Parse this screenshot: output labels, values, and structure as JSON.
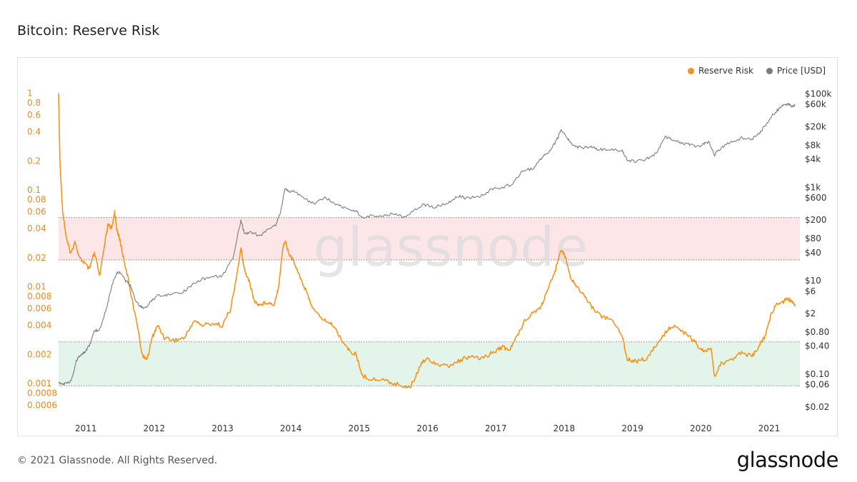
{
  "title": "Bitcoin: Reserve Risk",
  "footer": "© 2021 Glassnode. All Rights Reserved.",
  "brand": "glassnode",
  "watermark": "glassnode",
  "chart_data": {
    "type": "line",
    "title": "Bitcoin: Reserve Risk",
    "legend_position": "top-right",
    "grid": false,
    "x_ticks": [
      "2011",
      "2012",
      "2013",
      "2014",
      "2015",
      "2016",
      "2017",
      "2018",
      "2019",
      "2020",
      "2021"
    ],
    "x_range": [
      2010.6,
      2021.45
    ],
    "left_axis": {
      "scale": "log",
      "range": [
        0.0005,
        1.2
      ],
      "ticks": [
        1,
        0.8,
        0.6,
        0.4,
        0.2,
        0.1,
        0.08,
        0.06,
        0.04,
        0.02,
        0.01,
        0.008,
        0.006,
        0.004,
        0.002,
        0.001,
        0.0008,
        0.0006
      ],
      "tick_labels": [
        "1",
        "0.8",
        "0.6",
        "0.4",
        "0.2",
        "0.1",
        "0.08",
        "0.06",
        "0.04",
        "0.02",
        "0.01",
        "0.008",
        "0.006",
        "0.004",
        "0.002",
        "0.001",
        "0.0008",
        "0.0006"
      ]
    },
    "right_axis": {
      "scale": "log",
      "range": [
        0.015,
        150000
      ],
      "ticks": [
        100000,
        60000,
        20000,
        8000,
        4000,
        1000,
        600,
        200,
        80,
        40,
        10,
        6,
        2,
        0.8,
        0.4,
        0.1,
        0.06,
        0.02
      ],
      "tick_labels": [
        "$100k",
        "$60k",
        "$20k",
        "$8k",
        "$4k",
        "$1k",
        "$600",
        "$200",
        "$80",
        "$40",
        "$10",
        "$6",
        "$2",
        "$0.80",
        "$0.40",
        "$0.10",
        "$0.06",
        "$0.02"
      ]
    },
    "bands": [
      {
        "name": "high",
        "from": 0.019,
        "to": 0.052,
        "color": "#fde6e8"
      },
      {
        "name": "low",
        "from": 0.00095,
        "to": 0.0027,
        "color": "#e3f5ea"
      }
    ],
    "series": [
      {
        "name": "Reserve Risk",
        "axis": "left",
        "color": "#f7931a",
        "points": [
          [
            2010.6,
            1.0
          ],
          [
            2010.62,
            0.2
          ],
          [
            2010.66,
            0.06
          ],
          [
            2010.72,
            0.03
          ],
          [
            2010.78,
            0.022
          ],
          [
            2010.84,
            0.03
          ],
          [
            2010.9,
            0.02
          ],
          [
            2010.97,
            0.018
          ],
          [
            2011.05,
            0.015
          ],
          [
            2011.1,
            0.02
          ],
          [
            2011.13,
            0.022
          ],
          [
            2011.2,
            0.013
          ],
          [
            2011.28,
            0.03
          ],
          [
            2011.33,
            0.045
          ],
          [
            2011.38,
            0.04
          ],
          [
            2011.42,
            0.06
          ],
          [
            2011.45,
            0.04
          ],
          [
            2011.5,
            0.03
          ],
          [
            2011.55,
            0.02
          ],
          [
            2011.62,
            0.012
          ],
          [
            2011.7,
            0.006
          ],
          [
            2011.77,
            0.0035
          ],
          [
            2011.82,
            0.002
          ],
          [
            2011.9,
            0.0018
          ],
          [
            2011.97,
            0.003
          ],
          [
            2012.05,
            0.004
          ],
          [
            2012.15,
            0.003
          ],
          [
            2012.3,
            0.0028
          ],
          [
            2012.45,
            0.003
          ],
          [
            2012.58,
            0.0045
          ],
          [
            2012.7,
            0.004
          ],
          [
            2012.85,
            0.0042
          ],
          [
            2013.0,
            0.004
          ],
          [
            2013.12,
            0.006
          ],
          [
            2013.2,
            0.012
          ],
          [
            2013.27,
            0.025
          ],
          [
            2013.32,
            0.015
          ],
          [
            2013.38,
            0.012
          ],
          [
            2013.47,
            0.007
          ],
          [
            2013.55,
            0.0065
          ],
          [
            2013.65,
            0.007
          ],
          [
            2013.75,
            0.0065
          ],
          [
            2013.82,
            0.01
          ],
          [
            2013.88,
            0.025
          ],
          [
            2013.92,
            0.03
          ],
          [
            2013.97,
            0.022
          ],
          [
            2014.05,
            0.018
          ],
          [
            2014.15,
            0.012
          ],
          [
            2014.25,
            0.008
          ],
          [
            2014.35,
            0.0055
          ],
          [
            2014.5,
            0.0045
          ],
          [
            2014.62,
            0.004
          ],
          [
            2014.75,
            0.0028
          ],
          [
            2014.85,
            0.0022
          ],
          [
            2014.95,
            0.002
          ],
          [
            2015.05,
            0.0012
          ],
          [
            2015.2,
            0.0011
          ],
          [
            2015.35,
            0.0011
          ],
          [
            2015.5,
            0.001
          ],
          [
            2015.65,
            0.00095
          ],
          [
            2015.75,
            0.00092
          ],
          [
            2015.85,
            0.0013
          ],
          [
            2015.92,
            0.0017
          ],
          [
            2016.0,
            0.0018
          ],
          [
            2016.15,
            0.0016
          ],
          [
            2016.3,
            0.0015
          ],
          [
            2016.45,
            0.0017
          ],
          [
            2016.6,
            0.0019
          ],
          [
            2016.75,
            0.0018
          ],
          [
            2016.9,
            0.002
          ],
          [
            2017.0,
            0.0022
          ],
          [
            2017.1,
            0.0024
          ],
          [
            2017.2,
            0.0022
          ],
          [
            2017.3,
            0.003
          ],
          [
            2017.42,
            0.0045
          ],
          [
            2017.55,
            0.0055
          ],
          [
            2017.65,
            0.006
          ],
          [
            2017.75,
            0.009
          ],
          [
            2017.85,
            0.013
          ],
          [
            2017.95,
            0.025
          ],
          [
            2018.02,
            0.02
          ],
          [
            2018.1,
            0.012
          ],
          [
            2018.2,
            0.01
          ],
          [
            2018.3,
            0.008
          ],
          [
            2018.42,
            0.006
          ],
          [
            2018.55,
            0.005
          ],
          [
            2018.7,
            0.0045
          ],
          [
            2018.85,
            0.0032
          ],
          [
            2018.92,
            0.0018
          ],
          [
            2019.05,
            0.0017
          ],
          [
            2019.2,
            0.0018
          ],
          [
            2019.35,
            0.0025
          ],
          [
            2019.5,
            0.0035
          ],
          [
            2019.6,
            0.004
          ],
          [
            2019.72,
            0.0035
          ],
          [
            2019.85,
            0.003
          ],
          [
            2019.95,
            0.0025
          ],
          [
            2020.05,
            0.0021
          ],
          [
            2020.15,
            0.0023
          ],
          [
            2020.2,
            0.0012
          ],
          [
            2020.3,
            0.0016
          ],
          [
            2020.45,
            0.0018
          ],
          [
            2020.6,
            0.0021
          ],
          [
            2020.75,
            0.0019
          ],
          [
            2020.85,
            0.0024
          ],
          [
            2020.95,
            0.0032
          ],
          [
            2021.02,
            0.005
          ],
          [
            2021.1,
            0.0065
          ],
          [
            2021.2,
            0.007
          ],
          [
            2021.28,
            0.0075
          ],
          [
            2021.33,
            0.007
          ],
          [
            2021.38,
            0.0063
          ]
        ]
      },
      {
        "name": "Price [USD]",
        "axis": "right",
        "color": "#7b7b7b",
        "points": [
          [
            2010.6,
            0.065
          ],
          [
            2010.66,
            0.06
          ],
          [
            2010.72,
            0.065
          ],
          [
            2010.78,
            0.07
          ],
          [
            2010.82,
            0.11
          ],
          [
            2010.86,
            0.2
          ],
          [
            2010.92,
            0.25
          ],
          [
            2010.98,
            0.3
          ],
          [
            2011.05,
            0.4
          ],
          [
            2011.12,
            0.85
          ],
          [
            2011.2,
            0.9
          ],
          [
            2011.3,
            2.5
          ],
          [
            2011.38,
            8
          ],
          [
            2011.45,
            15
          ],
          [
            2011.52,
            15
          ],
          [
            2011.58,
            10
          ],
          [
            2011.65,
            8
          ],
          [
            2011.72,
            4
          ],
          [
            2011.78,
            3
          ],
          [
            2011.85,
            2.5
          ],
          [
            2011.95,
            3.5
          ],
          [
            2012.05,
            5
          ],
          [
            2012.2,
            5
          ],
          [
            2012.4,
            5.5
          ],
          [
            2012.55,
            8
          ],
          [
            2012.7,
            11
          ],
          [
            2012.85,
            12
          ],
          [
            2013.0,
            13
          ],
          [
            2013.15,
            30
          ],
          [
            2013.27,
            200
          ],
          [
            2013.32,
            100
          ],
          [
            2013.42,
            110
          ],
          [
            2013.55,
            90
          ],
          [
            2013.65,
            120
          ],
          [
            2013.78,
            160
          ],
          [
            2013.85,
            300
          ],
          [
            2013.92,
            1000
          ],
          [
            2013.97,
            800
          ],
          [
            2014.05,
            850
          ],
          [
            2014.2,
            550
          ],
          [
            2014.35,
            450
          ],
          [
            2014.5,
            600
          ],
          [
            2014.65,
            450
          ],
          [
            2014.8,
            350
          ],
          [
            2014.95,
            320
          ],
          [
            2015.05,
            220
          ],
          [
            2015.2,
            250
          ],
          [
            2015.35,
            240
          ],
          [
            2015.5,
            280
          ],
          [
            2015.65,
            230
          ],
          [
            2015.8,
            320
          ],
          [
            2015.95,
            430
          ],
          [
            2016.1,
            380
          ],
          [
            2016.3,
            450
          ],
          [
            2016.45,
            650
          ],
          [
            2016.55,
            600
          ],
          [
            2016.7,
            610
          ],
          [
            2016.85,
            730
          ],
          [
            2016.95,
            950
          ],
          [
            2017.1,
            1000
          ],
          [
            2017.25,
            1200
          ],
          [
            2017.4,
            2300
          ],
          [
            2017.55,
            2500
          ],
          [
            2017.68,
            4500
          ],
          [
            2017.8,
            6000
          ],
          [
            2017.9,
            11000
          ],
          [
            2017.96,
            17000
          ],
          [
            2018.05,
            11000
          ],
          [
            2018.12,
            8000
          ],
          [
            2018.25,
            7000
          ],
          [
            2018.38,
            7500
          ],
          [
            2018.5,
            6500
          ],
          [
            2018.65,
            6400
          ],
          [
            2018.85,
            6300
          ],
          [
            2018.92,
            3800
          ],
          [
            2019.05,
            3600
          ],
          [
            2019.2,
            4000
          ],
          [
            2019.35,
            5500
          ],
          [
            2019.48,
            12000
          ],
          [
            2019.58,
            10500
          ],
          [
            2019.7,
            9000
          ],
          [
            2019.82,
            8300
          ],
          [
            2019.95,
            7200
          ],
          [
            2020.05,
            8500
          ],
          [
            2020.12,
            9500
          ],
          [
            2020.2,
            5000
          ],
          [
            2020.3,
            7000
          ],
          [
            2020.45,
            9500
          ],
          [
            2020.6,
            11500
          ],
          [
            2020.75,
            11000
          ],
          [
            2020.85,
            14000
          ],
          [
            2020.95,
            22000
          ],
          [
            2021.05,
            35000
          ],
          [
            2021.12,
            45000
          ],
          [
            2021.2,
            57000
          ],
          [
            2021.28,
            60000
          ],
          [
            2021.33,
            55000
          ],
          [
            2021.38,
            58000
          ]
        ]
      }
    ]
  }
}
